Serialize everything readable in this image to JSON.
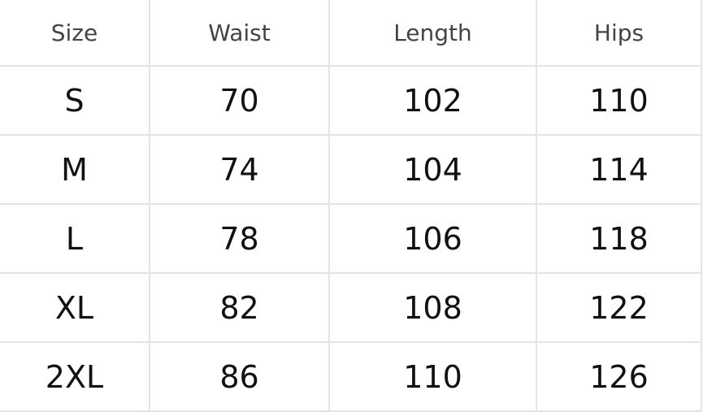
{
  "headers": [
    "Size",
    "Waist",
    "Length",
    "Hips"
  ],
  "rows": [
    [
      "S",
      "70",
      "102",
      "110"
    ],
    [
      "M",
      "74",
      "104",
      "114"
    ],
    [
      "L",
      "78",
      "106",
      "118"
    ],
    [
      "XL",
      "82",
      "108",
      "122"
    ],
    [
      "2XL",
      "86",
      "110",
      "126"
    ]
  ]
}
